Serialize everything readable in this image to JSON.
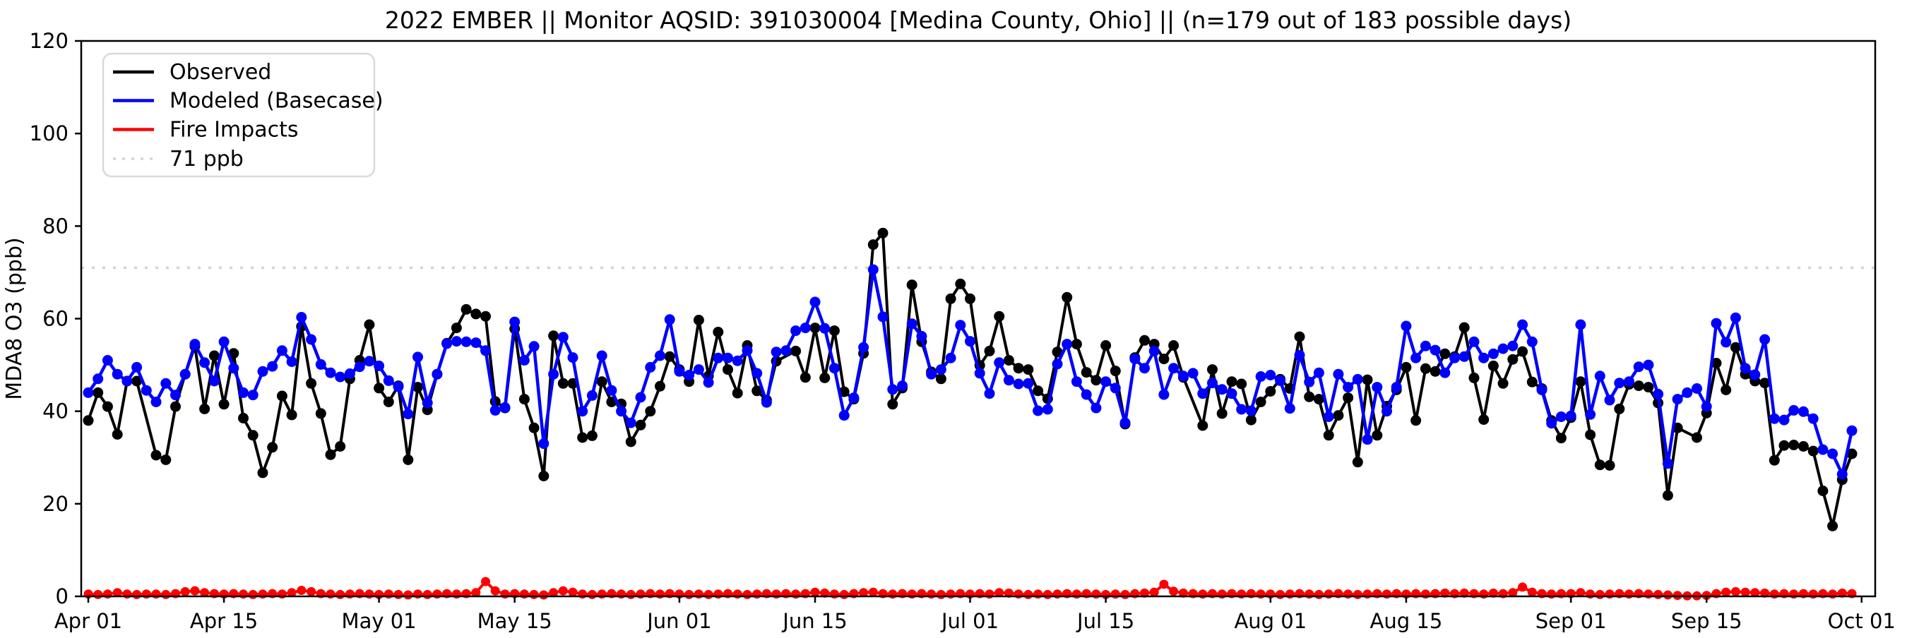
{
  "title": "2022 EMBER || Monitor AQSID: 391030004 [Medina County, Ohio] || (n=179 out of 183 possible days)",
  "ylabel": "MDA8 O3 (ppb)",
  "legend": {
    "items": [
      {
        "label": "Observed",
        "color": "#000000",
        "style": "solid"
      },
      {
        "label": "Modeled (Basecase)",
        "color": "#0000ff",
        "style": "solid"
      },
      {
        "label": "Fire Impacts",
        "color": "#ff0000",
        "style": "solid"
      },
      {
        "label": "71 ppb",
        "color": "#d3d3d3",
        "style": "dotted"
      }
    ]
  },
  "chart_data": {
    "type": "line",
    "title": "2022 EMBER || Monitor AQSID: 391030004 [Medina County, Ohio] || (n=179 out of 183 possible days)",
    "xlabel": "",
    "ylabel": "MDA8 O3 (ppb)",
    "ylim": [
      0,
      120
    ],
    "yticks": [
      0,
      20,
      40,
      60,
      80,
      100,
      120
    ],
    "grid": false,
    "legend_position": "upper left",
    "x_start_date": "2022-04-01",
    "x_days_total": 183,
    "xticks": [
      {
        "day": 0,
        "label": "Apr 01"
      },
      {
        "day": 14,
        "label": "Apr 15"
      },
      {
        "day": 30,
        "label": "May 01"
      },
      {
        "day": 44,
        "label": "May 15"
      },
      {
        "day": 61,
        "label": "Jun 01"
      },
      {
        "day": 75,
        "label": "Jun 15"
      },
      {
        "day": 91,
        "label": "Jul 01"
      },
      {
        "day": 105,
        "label": "Jul 15"
      },
      {
        "day": 122,
        "label": "Aug 01"
      },
      {
        "day": 136,
        "label": "Aug 15"
      },
      {
        "day": 153,
        "label": "Sep 01"
      },
      {
        "day": 167,
        "label": "Sep 15"
      },
      {
        "day": 183,
        "label": "Oct 01"
      }
    ],
    "threshold": {
      "label": "71 ppb",
      "value": 71,
      "color": "#d3d3d3"
    },
    "series": [
      {
        "name": "Observed",
        "color": "#000000",
        "marker": "o",
        "values": [
          38,
          44,
          41,
          35,
          46.5,
          46.5,
          null,
          30.5,
          29.5,
          41,
          48,
          54,
          40.5,
          52,
          41.5,
          52.5,
          38.5,
          34.8,
          26.7,
          32.2,
          43.3,
          39.2,
          58.3,
          46,
          39.5,
          30.6,
          32.4,
          47,
          51,
          58.7,
          45,
          42,
          45.5,
          29.5,
          45.2,
          40.3,
          48,
          54.7,
          58,
          62,
          61,
          60.5,
          42.1,
          40.7,
          57.8,
          42.6,
          36.4,
          26,
          56.3,
          46,
          46,
          34.3,
          34.7,
          46.4,
          42,
          41.6,
          33.4,
          37,
          40,
          45.4,
          51.8,
          49,
          46.4,
          59.7,
          47.6,
          57.1,
          49,
          43.9,
          54.2,
          44.4,
          42.4,
          50.8,
          null,
          53,
          47.3,
          58,
          47.2,
          57.4,
          44.2,
          42.6,
          52.5,
          76,
          78.5,
          41.5,
          45,
          67.3,
          55,
          48.5,
          47,
          64.3,
          67.5,
          64.3,
          49.9,
          53,
          60.5,
          51,
          49.3,
          49,
          44.4,
          42.7,
          52.8,
          64.6,
          54.5,
          48.4,
          46.7,
          54.2,
          48.7,
          37.2,
          51.6,
          55.3,
          54.5,
          51.3,
          54.2,
          47.3,
          null,
          36.9,
          49,
          39.5,
          46.4,
          45.9,
          38.1,
          42,
          44.3,
          46.9,
          44.9,
          56.1,
          43.1,
          42.6,
          34.8,
          39.1,
          42.9,
          29,
          46.8,
          34.8,
          41.1,
          44.6,
          49.5,
          38,
          49.2,
          48.6,
          52.4,
          51.8,
          58.1,
          47.2,
          38.2,
          49.8,
          46,
          51.2,
          52.9,
          46.3,
          44.9,
          38,
          34.2,
          38.6,
          46.4,
          34.9,
          28.4,
          28.3,
          40.5,
          45.8,
          45.5,
          45.2,
          41.8,
          21.8,
          36.4,
          null,
          34.3,
          39.6,
          50.4,
          44.6,
          53.8,
          48,
          46.5,
          46.1,
          29.4,
          32.6,
          32.7,
          32.4,
          31.4,
          22.8,
          15.2,
          25.2,
          30.8
        ]
      },
      {
        "name": "Modeled (Basecase)",
        "color": "#0000ff",
        "marker": "o",
        "values": [
          44,
          47,
          51,
          48,
          46.5,
          49.5,
          44.5,
          42,
          46,
          43.5,
          48,
          54.5,
          50.5,
          46.5,
          55,
          49.3,
          44,
          43.5,
          48.6,
          49.7,
          53.1,
          50.7,
          60.3,
          55.5,
          50.1,
          48.3,
          47.4,
          48.1,
          49.6,
          50.8,
          49.8,
          46.6,
          45.3,
          39.4,
          51.7,
          41.8,
          48,
          54.6,
          55.1,
          55,
          54.8,
          53.1,
          40.2,
          40.8,
          59.3,
          51,
          54,
          33,
          48,
          56,
          51.6,
          40,
          43.4,
          52,
          44.5,
          40,
          37.5,
          43,
          49.5,
          52,
          59.8,
          48.6,
          47.8,
          49,
          46.2,
          51.5,
          51.5,
          50.9,
          53.1,
          48.2,
          41.9,
          52.8,
          53.1,
          57.4,
          58,
          63.6,
          57.9,
          49.3,
          39.1,
          42.9,
          53.8,
          70.6,
          60.4,
          44.7,
          45.5,
          58.9,
          56.2,
          48,
          49,
          51.5,
          58.6,
          55.1,
          48.2,
          43.8,
          50.5,
          46.7,
          45.9,
          46,
          40.1,
          40.4,
          50.2,
          54.5,
          46.4,
          43.6,
          40.7,
          46.4,
          45,
          37.5,
          51.3,
          49.3,
          53,
          43.6,
          49.3,
          47.6,
          48.2,
          43.8,
          46.1,
          44.7,
          43.8,
          40.4,
          40.1,
          47.5,
          47.8,
          46.6,
          40.6,
          52.1,
          46.3,
          48.3,
          38.8,
          48,
          45.2,
          46.9,
          33.9,
          45.2,
          40,
          45.2,
          58.4,
          51.5,
          54.1,
          53.2,
          48.3,
          51.5,
          51.8,
          55,
          51.5,
          52.4,
          53.5,
          54.1,
          58.7,
          55,
          44.6,
          37.4,
          38.8,
          39,
          58.7,
          39.3,
          47.6,
          42.4,
          46.1,
          46.4,
          49.6,
          50,
          43.7,
          28.7,
          42.6,
          44,
          44.9,
          41,
          59,
          54.9,
          60.2,
          49.3,
          47.9,
          55.5,
          38.4,
          38.1,
          40.2,
          39.9,
          38.4,
          31.7,
          30.8,
          26.4,
          35.8
        ]
      },
      {
        "name": "Fire Impacts",
        "color": "#ff0000",
        "marker": "o",
        "values": [
          0.5,
          0.4,
          0.5,
          0.8,
          0.5,
          0.4,
          0.5,
          0.5,
          0.4,
          0.6,
          1.0,
          1.2,
          0.8,
          0.6,
          0.5,
          0.6,
          0.5,
          0.4,
          0.5,
          0.6,
          0.5,
          0.8,
          1.3,
          1.0,
          0.6,
          0.5,
          0.4,
          0.5,
          0.6,
          0.5,
          0.4,
          0.5,
          0.4,
          0.3,
          0.5,
          0.4,
          0.5,
          0.6,
          0.5,
          0.6,
          0.8,
          3.2,
          1.2,
          0.5,
          0.6,
          0.5,
          0.4,
          0.3,
          0.8,
          1.2,
          0.9,
          0.5,
          0.4,
          0.5,
          0.6,
          0.5,
          0.4,
          0.5,
          0.6,
          0.5,
          0.6,
          0.5,
          0.4,
          0.5,
          0.4,
          0.5,
          0.6,
          0.5,
          0.4,
          0.5,
          0.6,
          0.5,
          0.6,
          0.5,
          0.6,
          0.9,
          0.7,
          0.5,
          0.4,
          0.6,
          0.8,
          0.9,
          0.6,
          0.5,
          0.6,
          0.5,
          0.6,
          0.5,
          0.4,
          0.5,
          0.6,
          0.5,
          0.6,
          0.5,
          0.8,
          0.7,
          0.5,
          0.4,
          0.5,
          0.4,
          0.5,
          0.6,
          0.5,
          0.6,
          0.5,
          0.4,
          0.5,
          0.4,
          0.6,
          0.7,
          0.9,
          2.6,
          1.1,
          0.7,
          0.6,
          0.5,
          0.6,
          0.5,
          0.6,
          0.5,
          0.6,
          0.5,
          0.5,
          0.4,
          0.5,
          0.6,
          0.5,
          0.4,
          0.5,
          0.6,
          0.5,
          0.4,
          0.5,
          0.6,
          0.5,
          0.6,
          0.5,
          0.6,
          0.5,
          0.6,
          0.7,
          0.6,
          0.7,
          0.6,
          0.5,
          0.7,
          0.6,
          0.8,
          2.0,
          0.9,
          0.6,
          0.5,
          0.6,
          0.6,
          0.8,
          0.5,
          0.4,
          0.5,
          0.6,
          0.5,
          0.6,
          0.5,
          0.4,
          0.3,
          0.2,
          0.1,
          0.1,
          0.2,
          0.6,
          0.9,
          1.0,
          0.9,
          0.8,
          0.7,
          0.5,
          0.6,
          0.5,
          0.6,
          0.5,
          0.6,
          0.5,
          0.7,
          0.6
        ]
      }
    ]
  },
  "layout_note_values": {
    "y_axis_tick_labels": [
      "0",
      "20",
      "40",
      "60",
      "80",
      "100",
      "120"
    ]
  }
}
